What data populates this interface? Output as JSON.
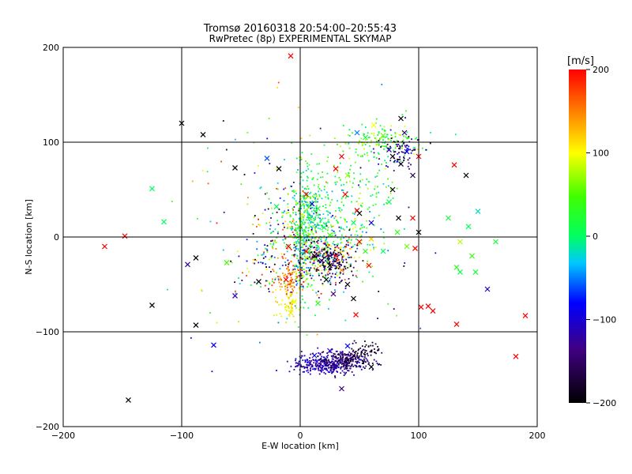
{
  "chart_data": {
    "type": "scatter",
    "title": "Tromsø 20160318 20:54:00–20:55:43",
    "subtitle": "RwPretec (8p) EXPERIMENTAL SKYMAP",
    "xlabel": "E-W location [km]",
    "ylabel": "N-S location [km]",
    "xlim": [
      -200,
      200
    ],
    "ylim": [
      -200,
      200
    ],
    "x_ticks": [
      -200,
      -100,
      0,
      100,
      200
    ],
    "y_ticks": [
      -200,
      -100,
      0,
      100,
      200
    ],
    "x_tick_labels": [
      "−200",
      "−100",
      "0",
      "100",
      "200"
    ],
    "y_tick_labels": [
      "−200",
      "−100",
      "0",
      "100",
      "200"
    ],
    "grid": true,
    "colorbar": {
      "label": "[m/s]",
      "range": [
        -200,
        200
      ],
      "ticks": [
        200,
        100,
        0,
        -100,
        -200
      ],
      "tick_labels": [
        "200",
        "100",
        "0",
        "−100",
        "−200"
      ],
      "stops": [
        "#000000",
        "#400080",
        "#0000ff",
        "#00ffff",
        "#00ff00",
        "#ffff00",
        "#ff0000"
      ]
    },
    "crosses": [
      {
        "x": -8,
        "y": 191,
        "v": 200
      },
      {
        "x": -100,
        "y": 120,
        "v": -200
      },
      {
        "x": -82,
        "y": 108,
        "v": -200
      },
      {
        "x": -55,
        "y": 73,
        "v": -200
      },
      {
        "x": -125,
        "y": 51,
        "v": 0
      },
      {
        "x": -115,
        "y": 16,
        "v": 0
      },
      {
        "x": -148,
        "y": 1,
        "v": 200
      },
      {
        "x": -165,
        "y": -10,
        "v": 200
      },
      {
        "x": -88,
        "y": -22,
        "v": -200
      },
      {
        "x": -95,
        "y": -29,
        "v": -120
      },
      {
        "x": -62,
        "y": -27,
        "v": 50
      },
      {
        "x": -55,
        "y": -62,
        "v": -120
      },
      {
        "x": -125,
        "y": -72,
        "v": -200
      },
      {
        "x": -88,
        "y": -93,
        "v": -200
      },
      {
        "x": -73,
        "y": -114,
        "v": -80
      },
      {
        "x": -145,
        "y": -172,
        "v": -200
      },
      {
        "x": -35,
        "y": -47,
        "v": -200
      },
      {
        "x": -28,
        "y": 83,
        "v": -60
      },
      {
        "x": -18,
        "y": 72,
        "v": -200
      },
      {
        "x": -20,
        "y": 32,
        "v": 0
      },
      {
        "x": -10,
        "y": -10,
        "v": 200
      },
      {
        "x": -12,
        "y": -45,
        "v": 200
      },
      {
        "x": -5,
        "y": -68,
        "v": 100
      },
      {
        "x": -8,
        "y": -80,
        "v": 110
      },
      {
        "x": 5,
        "y": 45,
        "v": 200
      },
      {
        "x": 10,
        "y": 35,
        "v": -80
      },
      {
        "x": 15,
        "y": 30,
        "v": 20
      },
      {
        "x": 8,
        "y": 20,
        "v": 40
      },
      {
        "x": 0,
        "y": 10,
        "v": 60
      },
      {
        "x": 20,
        "y": 10,
        "v": 0
      },
      {
        "x": 25,
        "y": 2,
        "v": 40
      },
      {
        "x": 5,
        "y": -15,
        "v": 200
      },
      {
        "x": 12,
        "y": -20,
        "v": -200
      },
      {
        "x": 18,
        "y": -25,
        "v": -160
      },
      {
        "x": 25,
        "y": -30,
        "v": -200
      },
      {
        "x": 30,
        "y": -20,
        "v": 200
      },
      {
        "x": 35,
        "y": -35,
        "v": 150
      },
      {
        "x": 22,
        "y": -45,
        "v": -200
      },
      {
        "x": 40,
        "y": -50,
        "v": -200
      },
      {
        "x": 28,
        "y": -60,
        "v": -140
      },
      {
        "x": 45,
        "y": -65,
        "v": -200
      },
      {
        "x": 15,
        "y": -70,
        "v": 30
      },
      {
        "x": 35,
        "y": 85,
        "v": 200
      },
      {
        "x": 30,
        "y": 72,
        "v": 200
      },
      {
        "x": 40,
        "y": 65,
        "v": 70
      },
      {
        "x": 38,
        "y": 45,
        "v": 200
      },
      {
        "x": 48,
        "y": 28,
        "v": 200
      },
      {
        "x": 50,
        "y": 25,
        "v": -200
      },
      {
        "x": 45,
        "y": 15,
        "v": 0
      },
      {
        "x": 60,
        "y": 15,
        "v": -100
      },
      {
        "x": 50,
        "y": -5,
        "v": 200
      },
      {
        "x": 55,
        "y": -15,
        "v": 40
      },
      {
        "x": 60,
        "y": -2,
        "v": 120
      },
      {
        "x": 48,
        "y": 110,
        "v": -50
      },
      {
        "x": 55,
        "y": 105,
        "v": 20
      },
      {
        "x": 62,
        "y": 118,
        "v": 100
      },
      {
        "x": 70,
        "y": 107,
        "v": 60
      },
      {
        "x": 75,
        "y": 92,
        "v": -110
      },
      {
        "x": 78,
        "y": 85,
        "v": -200
      },
      {
        "x": 85,
        "y": 125,
        "v": -200
      },
      {
        "x": 88,
        "y": 110,
        "v": -140
      },
      {
        "x": 85,
        "y": 77,
        "v": -180
      },
      {
        "x": 90,
        "y": 90,
        "v": -80
      },
      {
        "x": 100,
        "y": 85,
        "v": 200
      },
      {
        "x": 95,
        "y": 65,
        "v": -160
      },
      {
        "x": 78,
        "y": 50,
        "v": -200
      },
      {
        "x": 83,
        "y": 20,
        "v": -200
      },
      {
        "x": 95,
        "y": 20,
        "v": 200
      },
      {
        "x": 75,
        "y": 37,
        "v": 0
      },
      {
        "x": 82,
        "y": 5,
        "v": 40
      },
      {
        "x": 100,
        "y": 5,
        "v": -200
      },
      {
        "x": 90,
        "y": -10,
        "v": 60
      },
      {
        "x": 97,
        "y": -12,
        "v": 200
      },
      {
        "x": 70,
        "y": -15,
        "v": 0
      },
      {
        "x": 58,
        "y": -30,
        "v": 200
      },
      {
        "x": 130,
        "y": 76,
        "v": 200
      },
      {
        "x": 140,
        "y": 65,
        "v": -200
      },
      {
        "x": 125,
        "y": 20,
        "v": 20
      },
      {
        "x": 150,
        "y": 27,
        "v": -20
      },
      {
        "x": 142,
        "y": 11,
        "v": 0
      },
      {
        "x": 135,
        "y": -5,
        "v": 80
      },
      {
        "x": 165,
        "y": -5,
        "v": 20
      },
      {
        "x": 145,
        "y": -20,
        "v": 40
      },
      {
        "x": 132,
        "y": -32,
        "v": 30
      },
      {
        "x": 135,
        "y": -37,
        "v": 10
      },
      {
        "x": 148,
        "y": -37,
        "v": 20
      },
      {
        "x": 158,
        "y": -55,
        "v": -110
      },
      {
        "x": 108,
        "y": -73,
        "v": 200
      },
      {
        "x": 102,
        "y": -74,
        "v": 200
      },
      {
        "x": 112,
        "y": -78,
        "v": 200
      },
      {
        "x": 132,
        "y": -92,
        "v": 200
      },
      {
        "x": 190,
        "y": -83,
        "v": 200
      },
      {
        "x": 182,
        "y": -126,
        "v": 200
      },
      {
        "x": 47,
        "y": -82,
        "v": 200
      },
      {
        "x": 40,
        "y": -115,
        "v": -80
      },
      {
        "x": 60,
        "y": -137,
        "v": -200
      },
      {
        "x": 35,
        "y": -160,
        "v": -130
      },
      {
        "x": 45,
        "y": -125,
        "v": -160
      },
      {
        "x": 40,
        "y": -130,
        "v": -180
      },
      {
        "x": 25,
        "y": -120,
        "v": -100
      },
      {
        "x": 30,
        "y": -135,
        "v": -120
      },
      {
        "x": 12,
        "y": -125,
        "v": -90
      }
    ],
    "clusters": [
      {
        "cx": 2,
        "cy": 10,
        "sx": 6,
        "sy": 35,
        "n": 340,
        "vmin": -40,
        "vmax": 90
      },
      {
        "cx": 12,
        "cy": 20,
        "sx": 9,
        "sy": 18,
        "n": 160,
        "vmin": -60,
        "vmax": 60
      },
      {
        "cx": 18,
        "cy": -22,
        "sx": 14,
        "sy": 13,
        "n": 330,
        "vmin": -200,
        "vmax": 200
      },
      {
        "cx": 28,
        "cy": -28,
        "sx": 10,
        "sy": 10,
        "n": 120,
        "vmin": -200,
        "vmax": -120
      },
      {
        "cx": -8,
        "cy": -45,
        "sx": 6,
        "sy": 10,
        "n": 90,
        "vmin": 110,
        "vmax": 200
      },
      {
        "cx": -10,
        "cy": -70,
        "sx": 5,
        "sy": 9,
        "n": 50,
        "vmin": 80,
        "vmax": 120
      },
      {
        "cx": 22,
        "cy": -135,
        "sx": 14,
        "sy": 5,
        "n": 300,
        "vmin": -150,
        "vmax": -80
      },
      {
        "cx": 38,
        "cy": -130,
        "sx": 11,
        "sy": 6,
        "n": 190,
        "vmin": -200,
        "vmax": -110
      },
      {
        "cx": 55,
        "cy": -120,
        "sx": 6,
        "sy": 6,
        "n": 50,
        "vmin": -200,
        "vmax": -160
      },
      {
        "cx": 70,
        "cy": 100,
        "sx": 16,
        "sy": 10,
        "n": 140,
        "vmin": -20,
        "vmax": 100
      },
      {
        "cx": 85,
        "cy": 90,
        "sx": 10,
        "sy": 10,
        "n": 80,
        "vmin": -200,
        "vmax": -80
      },
      {
        "cx": 45,
        "cy": 50,
        "sx": 18,
        "sy": 20,
        "n": 120,
        "vmin": -30,
        "vmax": 80
      },
      {
        "cx": 45,
        "cy": 0,
        "sx": 12,
        "sy": 12,
        "n": 80,
        "vmin": -60,
        "vmax": 120
      },
      {
        "cx": -15,
        "cy": 15,
        "sx": 10,
        "sy": 22,
        "n": 90,
        "vmin": -200,
        "vmax": 200
      },
      {
        "cx": -30,
        "cy": -30,
        "sx": 14,
        "sy": 16,
        "n": 70,
        "vmin": -200,
        "vmax": 200
      },
      {
        "cx": 0,
        "cy": 0,
        "sx": 55,
        "sy": 60,
        "n": 140,
        "vmin": -200,
        "vmax": 200
      }
    ]
  }
}
